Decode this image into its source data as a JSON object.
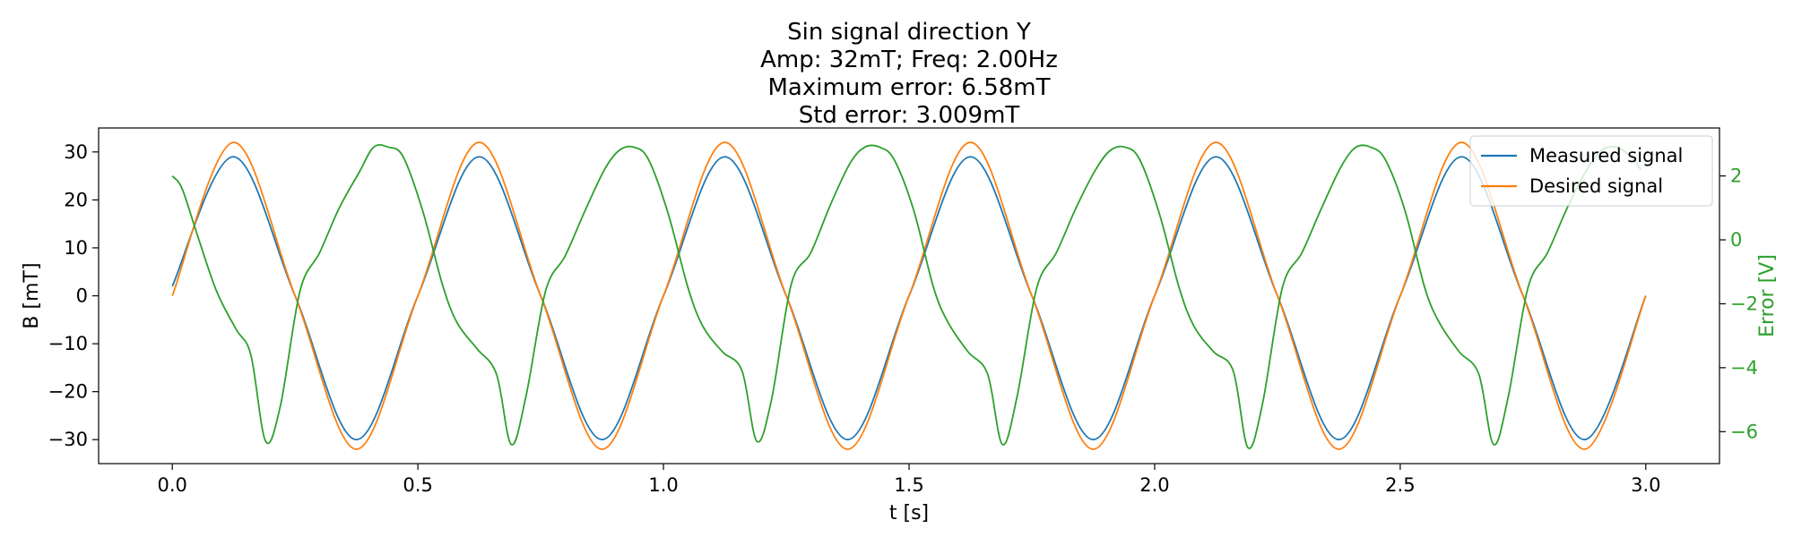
{
  "chart_data": {
    "type": "line",
    "title_lines": [
      "Sin signal direction Y",
      "Amp: 32mT; Freq: 2.00Hz",
      "Maximum error: 6.58mT",
      "Std error: 3.009mT"
    ],
    "xlabel": "t [s]",
    "ylabel": "B [mT]",
    "y2label": "Error [V]",
    "xlim": [
      -0.15,
      3.15
    ],
    "ylim": [
      -35,
      35
    ],
    "y2lim": [
      -7.0,
      3.5
    ],
    "x_ticks": [
      0.0,
      0.5,
      1.0,
      1.5,
      2.0,
      2.5,
      3.0
    ],
    "x_tick_labels": [
      "0.0",
      "0.5",
      "1.0",
      "1.5",
      "2.0",
      "2.5",
      "3.0"
    ],
    "y_ticks": [
      -30,
      -20,
      -10,
      0,
      10,
      20,
      30
    ],
    "y_tick_labels": [
      "−30",
      "−20",
      "−10",
      "0",
      "10",
      "20",
      "30"
    ],
    "y2_ticks": [
      -6,
      -4,
      -2,
      0,
      2
    ],
    "y2_tick_labels": [
      "−6",
      "−4",
      "−2",
      "0",
      "2"
    ],
    "grid": false,
    "legend_position": "top-right",
    "series": [
      {
        "name": "Measured signal",
        "color": "#1f77b4",
        "axis": "left",
        "x": [
          0.0,
          0.125,
          0.25,
          0.375,
          0.5,
          0.625,
          0.75,
          0.875,
          1.0,
          1.125,
          1.25,
          1.375,
          1.5,
          1.625,
          1.75,
          1.875,
          2.0,
          2.125,
          2.25,
          2.375,
          2.5,
          2.625,
          2.75,
          2.875,
          3.0
        ],
        "values": [
          2,
          29,
          0,
          -30,
          0,
          29,
          0,
          -30,
          0,
          29,
          0,
          -30,
          0,
          29,
          0,
          -30,
          0,
          29,
          0,
          -30,
          0,
          29,
          0,
          -30,
          0
        ]
      },
      {
        "name": "Desired signal",
        "color": "#ff7f0e",
        "axis": "left",
        "x": [
          0.0,
          0.125,
          0.25,
          0.375,
          0.5,
          0.625,
          0.75,
          0.875,
          1.0,
          1.125,
          1.25,
          1.375,
          1.5,
          1.625,
          1.75,
          1.875,
          2.0,
          2.125,
          2.25,
          2.375,
          2.5,
          2.625,
          2.75,
          2.875,
          3.0
        ],
        "values": [
          0,
          32,
          0,
          -32,
          0,
          32,
          0,
          -32,
          0,
          32,
          0,
          -32,
          0,
          32,
          0,
          -32,
          0,
          32,
          0,
          -32,
          0,
          32,
          0,
          -32,
          0
        ]
      },
      {
        "name": "Error [V]",
        "color": "#2ca02c",
        "axis": "right",
        "x": [
          0.0,
          0.02,
          0.05,
          0.09,
          0.13,
          0.16,
          0.19,
          0.22,
          0.26,
          0.3,
          0.34,
          0.38,
          0.41,
          0.44,
          0.47,
          0.51,
          0.55,
          0.58,
          0.62,
          0.66,
          0.69,
          0.72,
          0.76,
          0.8,
          0.84,
          0.88,
          0.91,
          0.94,
          0.97,
          1.01,
          1.05,
          1.08,
          1.12,
          1.16,
          1.19,
          1.22,
          1.26,
          1.3,
          1.34,
          1.38,
          1.41,
          1.44,
          1.47,
          1.51,
          1.55,
          1.58,
          1.62,
          1.66,
          1.69,
          1.72,
          1.76,
          1.8,
          1.84,
          1.88,
          1.91,
          1.94,
          1.97,
          2.01,
          2.05,
          2.08,
          2.12,
          2.16,
          2.19,
          2.22,
          2.26,
          2.3,
          2.34,
          2.38,
          2.41,
          2.44,
          2.47,
          2.51,
          2.55,
          2.58,
          2.62,
          2.66,
          2.69,
          2.72,
          2.76,
          2.8,
          2.84,
          2.88,
          2.91,
          2.94,
          2.97,
          2.99
        ],
        "values": [
          2.0,
          1.6,
          0.2,
          -1.6,
          -2.8,
          -3.6,
          -6.3,
          -5.2,
          -1.6,
          -0.4,
          1.0,
          2.1,
          2.9,
          2.9,
          2.6,
          0.9,
          -1.4,
          -2.6,
          -3.4,
          -4.2,
          -6.4,
          -4.9,
          -1.6,
          -0.5,
          0.9,
          2.2,
          2.8,
          2.9,
          2.5,
          0.8,
          -1.5,
          -2.7,
          -3.5,
          -4.1,
          -6.3,
          -5.0,
          -1.4,
          -0.4,
          1.1,
          2.4,
          2.9,
          2.9,
          2.5,
          0.9,
          -1.5,
          -2.6,
          -3.5,
          -4.2,
          -6.4,
          -4.9,
          -1.5,
          -0.4,
          1.0,
          2.2,
          2.8,
          2.9,
          2.5,
          0.8,
          -1.5,
          -2.7,
          -3.5,
          -4.1,
          -6.5,
          -5.1,
          -1.5,
          -0.4,
          1.0,
          2.3,
          2.9,
          2.9,
          2.5,
          0.9,
          -1.5,
          -2.6,
          -3.5,
          -4.2,
          -6.4,
          -4.9,
          -1.5,
          -0.4,
          1.0,
          2.2,
          2.8,
          2.9,
          2.6,
          2.2
        ]
      }
    ],
    "legend": [
      {
        "label": "Measured signal",
        "color": "#1f77b4"
      },
      {
        "label": "Desired signal",
        "color": "#ff7f0e"
      }
    ],
    "colors": {
      "axis": "#000000",
      "right_axis": "#2ca02c"
    }
  }
}
